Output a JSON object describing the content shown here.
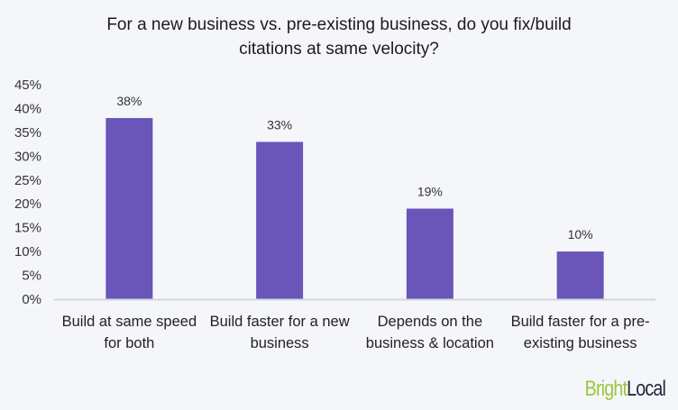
{
  "chart_data": {
    "type": "bar",
    "title": "For a new business vs. pre-existing business, do you fix/build citations at same velocity?",
    "title_lines": [
      "For a new business vs. pre-existing business, do you fix/build",
      "citations at same velocity?"
    ],
    "categories": [
      [
        "Build at same speed",
        "for both"
      ],
      [
        "Build faster for a new",
        "business"
      ],
      [
        "Depends on the",
        "business & location"
      ],
      [
        "Build faster for a pre-",
        "existing business"
      ]
    ],
    "values": [
      38,
      33,
      19,
      10
    ],
    "data_labels": [
      "38%",
      "33%",
      "19%",
      "10%"
    ],
    "ylim": [
      0,
      45
    ],
    "yticks": [
      "0%",
      "5%",
      "10%",
      "15%",
      "20%",
      "25%",
      "30%",
      "35%",
      "40%",
      "45%"
    ],
    "grid": false,
    "xlabel": "",
    "ylabel": "",
    "bar_color": "#6a55b8",
    "axis_color": "#d3d7dd"
  },
  "logo": {
    "part1": "Bright",
    "part2": "Local",
    "colors": [
      "#9cc63b",
      "#252a3d"
    ]
  }
}
